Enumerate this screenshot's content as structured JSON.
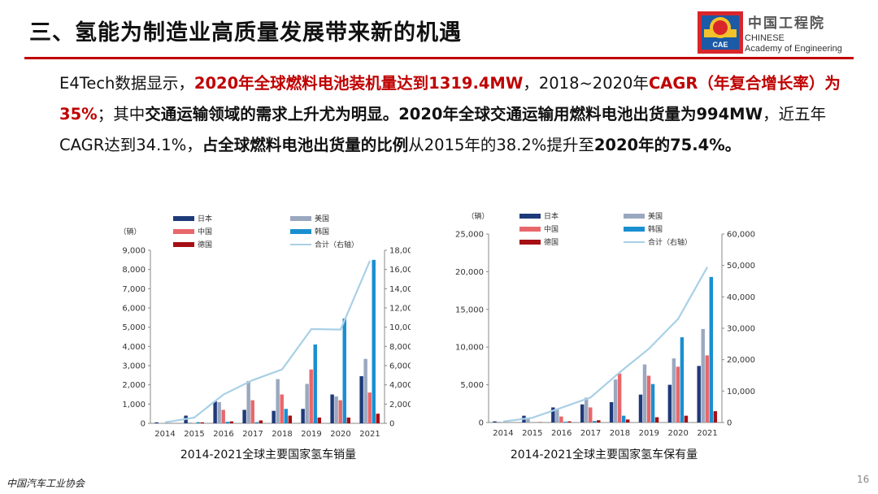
{
  "title": "三、氢能为制造业高质量发展带来新的机遇",
  "logo": {
    "cn": "中国工程院",
    "badge": "CAE",
    "en_line1": "CHINESE",
    "en_line2": "Academy of Engineering"
  },
  "paragraph": [
    {
      "t": "E4Tech数据显示，",
      "s": "n"
    },
    {
      "t": "2020年全球燃料电池装机量达到1319.4MW",
      "s": "red"
    },
    {
      "t": "，2018~2020年",
      "s": "n"
    },
    {
      "t": "CAGR（年复合增长率）为35%",
      "s": "red"
    },
    {
      "t": "；其中",
      "s": "n"
    },
    {
      "t": "交通运输领域的需求上升尤为明显。2020年全球交通运输用燃料电池出货量为994MW",
      "s": "b"
    },
    {
      "t": "，近五年CAGR达到34.1%，",
      "s": "n"
    },
    {
      "t": "占全球燃料电池出货量的比例",
      "s": "b"
    },
    {
      "t": "从2015年的38.2%提升至",
      "s": "n"
    },
    {
      "t": "2020年的75.4%。",
      "s": "b"
    }
  ],
  "colors": {
    "japan": "#1f3a7a",
    "usa": "#9aa8bf",
    "china": "#e8676b",
    "korea": "#1a8fd0",
    "germany": "#a50f15",
    "total": "#a9d0e6"
  },
  "chart_data": [
    {
      "type": "bar",
      "caption": "2014-2021全球主要国家氢车销量",
      "unit": "（辆）",
      "legend": [
        "日本",
        "美国",
        "中国",
        "韩国",
        "德国",
        "合计（右轴）"
      ],
      "categories": [
        "2014",
        "2015",
        "2016",
        "2017",
        "2018",
        "2019",
        "2020",
        "2021"
      ],
      "yticks": [
        "0",
        "1,000",
        "2,000",
        "3,000",
        "4,000",
        "5,000",
        "6,000",
        "7,000",
        "8,000",
        "9,000"
      ],
      "y2ticks": [
        "0",
        "2,000",
        "4,000",
        "6,000",
        "8,000",
        "10,000",
        "12,000",
        "14,000",
        "16,000",
        "18,000"
      ],
      "ylim": [
        0,
        9000
      ],
      "y2lim": [
        0,
        18000
      ],
      "series": [
        {
          "name": "日本",
          "values": [
            50,
            400,
            1150,
            700,
            650,
            750,
            1500,
            2450
          ]
        },
        {
          "name": "美国",
          "values": [
            20,
            40,
            1100,
            2200,
            2300,
            2050,
            1400,
            3350
          ]
        },
        {
          "name": "中国",
          "values": [
            0,
            10,
            700,
            1200,
            1500,
            2800,
            1200,
            1600
          ]
        },
        {
          "name": "韩国",
          "values": [
            0,
            60,
            80,
            60,
            750,
            4100,
            5450,
            8500
          ]
        },
        {
          "name": "德国",
          "values": [
            0,
            50,
            100,
            150,
            400,
            300,
            300,
            500
          ]
        }
      ],
      "total": {
        "name": "合计（右轴）",
        "values": [
          100,
          600,
          3000,
          4500,
          5600,
          9800,
          9750,
          16900
        ]
      }
    },
    {
      "type": "bar",
      "caption": "2014-2021全球主要国家氢车保有量",
      "unit": "（辆）",
      "legend": [
        "日本",
        "美国",
        "中国",
        "韩国",
        "德国",
        "合计（右轴）"
      ],
      "categories": [
        "2014",
        "2015",
        "2016",
        "2017",
        "2018",
        "2019",
        "2020",
        "2021"
      ],
      "yticks": [
        "0",
        "5,000",
        "10,000",
        "15,000",
        "20,000",
        "25,000"
      ],
      "y2ticks": [
        "0",
        "10,000",
        "20,000",
        "30,000",
        "40,000",
        "50,000",
        "60,000"
      ],
      "ylim": [
        0,
        25000
      ],
      "y2lim": [
        0,
        60000
      ],
      "series": [
        {
          "name": "日本",
          "values": [
            150,
            900,
            2000,
            2400,
            2700,
            3700,
            5000,
            7500
          ]
        },
        {
          "name": "美国",
          "values": [
            100,
            600,
            1800,
            3300,
            5700,
            7700,
            8500,
            12400
          ]
        },
        {
          "name": "中国",
          "values": [
            0,
            10,
            800,
            2000,
            6500,
            6200,
            7400,
            8900
          ]
        },
        {
          "name": "韩国",
          "values": [
            0,
            10,
            100,
            200,
            900,
            5100,
            11300,
            19300
          ]
        },
        {
          "name": "德国",
          "values": [
            0,
            50,
            150,
            300,
            400,
            700,
            900,
            1500
          ]
        }
      ],
      "total": {
        "name": "合计（右轴）",
        "values": [
          300,
          1500,
          4700,
          8000,
          16000,
          23500,
          33000,
          49500
        ]
      }
    }
  ],
  "footer": {
    "source": "中国汽车工业协会",
    "page": "16"
  }
}
